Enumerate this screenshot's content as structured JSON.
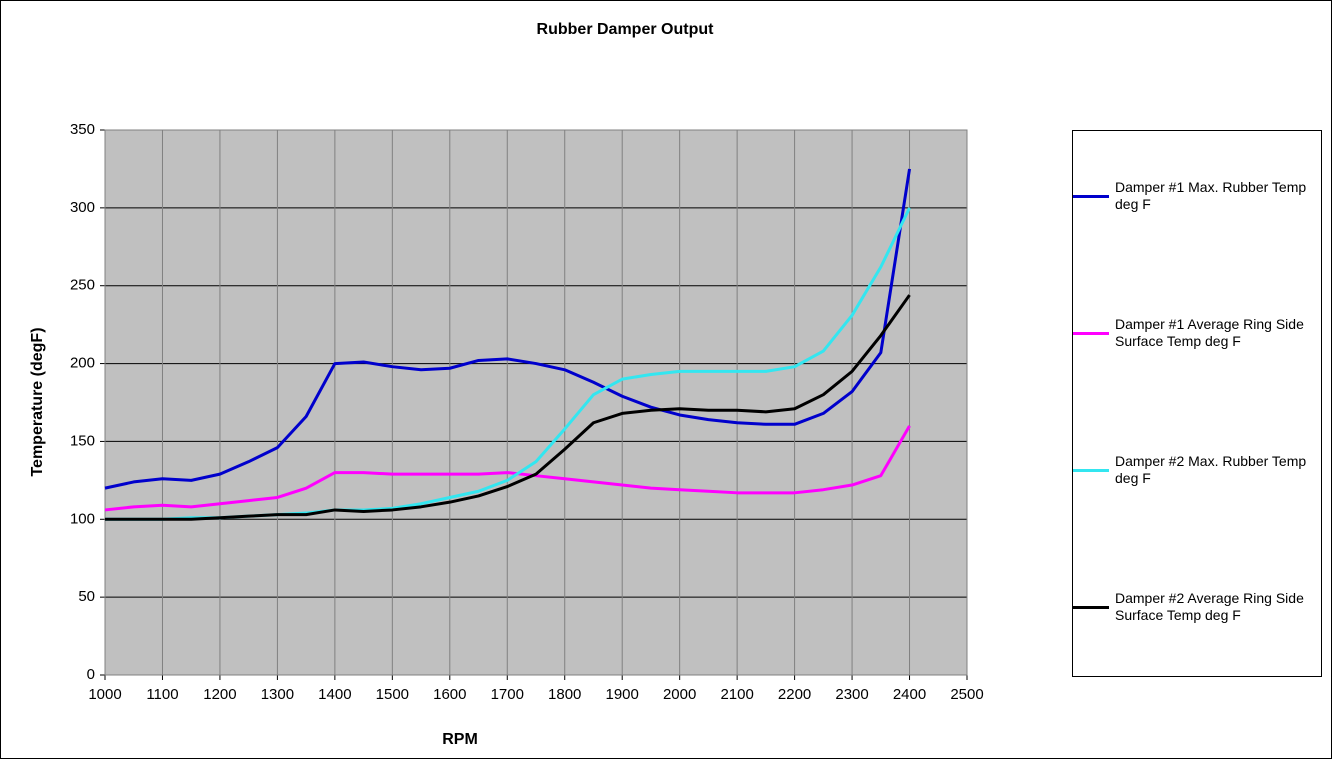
{
  "chart_data": {
    "type": "line",
    "title": "Rubber Damper Output",
    "x_label": "RPM",
    "y_label": "Temperature (degF)",
    "x": [
      1000,
      1050,
      1100,
      1150,
      1200,
      1250,
      1300,
      1350,
      1400,
      1450,
      1500,
      1550,
      1600,
      1650,
      1700,
      1750,
      1800,
      1850,
      1900,
      1950,
      2000,
      2050,
      2100,
      2150,
      2200,
      2250,
      2300,
      2350,
      2400
    ],
    "series": [
      {
        "name": "Damper #1 Max. Rubber Temp deg F",
        "color": "#0000cc",
        "values": [
          120,
          124,
          126,
          125,
          129,
          137,
          146,
          166,
          200,
          201,
          198,
          196,
          197,
          202,
          203,
          200,
          196,
          188,
          179,
          172,
          167,
          164,
          162,
          161,
          161,
          168,
          182,
          207,
          325
        ]
      },
      {
        "name": "Damper #1 Average Ring Side Surface Temp deg F",
        "color": "#ff00ff",
        "values": [
          106,
          108,
          109,
          108,
          110,
          112,
          114,
          120,
          130,
          130,
          129,
          129,
          129,
          129,
          130,
          128,
          126,
          124,
          122,
          120,
          119,
          118,
          117,
          117,
          117,
          119,
          122,
          128,
          160
        ]
      },
      {
        "name": "Damper #2 Max. Rubber Temp deg F",
        "color": "#33e6f0",
        "values": [
          100,
          100,
          100,
          101,
          101,
          102,
          103,
          104,
          106,
          106,
          107,
          110,
          114,
          118,
          125,
          137,
          158,
          180,
          190,
          193,
          195,
          195,
          195,
          195,
          198,
          208,
          231,
          262,
          300
        ]
      },
      {
        "name": "Damper #2 Average Ring Side Surface Temp deg F",
        "color": "#000000",
        "values": [
          100,
          100,
          100,
          100,
          101,
          102,
          103,
          103,
          106,
          105,
          106,
          108,
          111,
          115,
          121,
          129,
          145,
          162,
          168,
          170,
          171,
          170,
          170,
          169,
          171,
          180,
          195,
          218,
          244
        ]
      }
    ],
    "xlim": [
      1000,
      2500
    ],
    "xticks": [
      1000,
      1100,
      1200,
      1300,
      1400,
      1500,
      1600,
      1700,
      1800,
      1900,
      2000,
      2100,
      2200,
      2300,
      2400,
      2500
    ],
    "ylim": [
      0,
      350
    ],
    "yticks": [
      0,
      50,
      100,
      150,
      200,
      250,
      300,
      350
    ],
    "grid": true,
    "legend": "right"
  }
}
